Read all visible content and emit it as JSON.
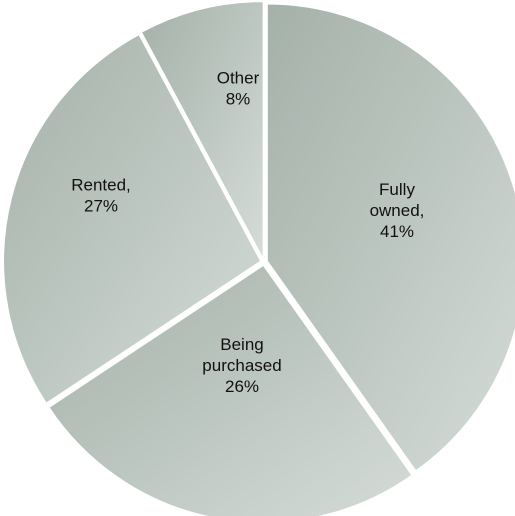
{
  "chart_data": {
    "type": "pie",
    "start_angle_deg": 0,
    "direction": "clockwise",
    "slices": [
      {
        "label_lines": [
          "Fully",
          "owned,",
          "41%"
        ],
        "value": 41,
        "color_from": "#a4b1a9",
        "color_to": "#d5dcd8"
      },
      {
        "label_lines": [
          "Being",
          "purchased",
          "26%"
        ],
        "value": 26,
        "color_from": "#a4b1a9",
        "color_to": "#d5dcd8"
      },
      {
        "label_lines": [
          "Rented,",
          "27%"
        ],
        "value": 27,
        "color_from": "#a4b1a9",
        "color_to": "#d5dcd8"
      },
      {
        "label_lines": [
          "Other",
          "8%"
        ],
        "value": 8,
        "color_from": "#a4b1a9",
        "color_to": "#d5dcd8"
      }
    ],
    "separator_color": "#ffffff"
  }
}
